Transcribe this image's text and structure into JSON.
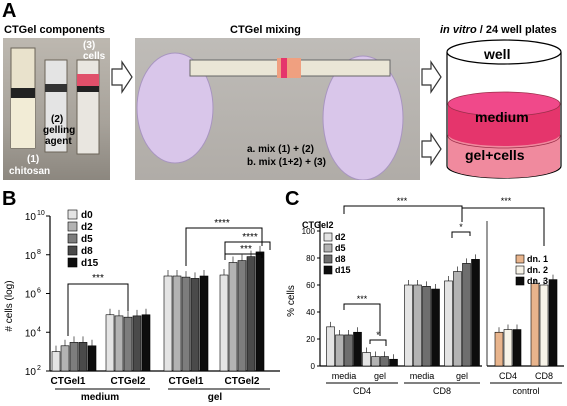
{
  "panel_a": {
    "letter": "A",
    "components_title": "CTGel components",
    "mixing_title": "CTGel mixing",
    "invitro_title_italic": "in vitro",
    "invitro_title_rest": " / 24 well plates",
    "syringe_labels": {
      "chitosan_num": "(1)",
      "chitosan": "chitosan",
      "gelling_num": "(2)",
      "gelling": "gelling",
      "agent": "agent",
      "cells_num": "(3)",
      "cells": "cells"
    },
    "mix_a": "a. mix (1) + (2)",
    "mix_b": "b. mix (1+2) + (3)",
    "well": "well",
    "medium": "medium",
    "gel_cells": "gel+cells",
    "colors": {
      "medium": "#e5356c",
      "gel": "#f08a9e",
      "glove": "#d9c6ea"
    }
  },
  "panel_b": {
    "letter": "B",
    "ylabel": "# cells (log)",
    "y_ticks": [
      "10",
      "10",
      "10",
      "10",
      "10"
    ],
    "y_exps": [
      "2",
      "4",
      "6",
      "8",
      "10"
    ],
    "legend": [
      "d0",
      "d2",
      "d5",
      "d8",
      "d15"
    ],
    "x_ticks": [
      "CTGel1",
      "CTGel2",
      "CTGel1",
      "CTGel2"
    ],
    "groups": [
      "medium",
      "gel"
    ],
    "sig": [
      "***",
      "****",
      "****",
      "***"
    ]
  },
  "panel_c": {
    "letter": "C",
    "legend_title": "CTGel2",
    "ylabel": "% cells",
    "y_ticks": [
      "0",
      "20",
      "40",
      "60",
      "80",
      "100"
    ],
    "legend": [
      "d2",
      "d5",
      "d8",
      "d15"
    ],
    "control_legend": [
      "dn. 1",
      "dn. 2",
      "dn. 3"
    ],
    "x_ticks": [
      "media",
      "gel",
      "media",
      "gel",
      "CD4",
      "CD8"
    ],
    "groups": [
      "CD4",
      "CD8",
      "control"
    ],
    "sig": [
      "***",
      "***",
      "*",
      "*",
      "***"
    ]
  },
  "chart_data": [
    {
      "type": "bar",
      "scale": "log",
      "ylabel": "# cells (log)",
      "ylim": [
        100,
        10000000000
      ],
      "categories": [
        "medium CTGel1",
        "medium CTGel2",
        "gel CTGel1",
        "gel CTGel2"
      ],
      "series": [
        {
          "name": "d0",
          "values": [
            1000,
            80000,
            8000000,
            9000000
          ]
        },
        {
          "name": "d2",
          "values": [
            2000,
            70000,
            8000000,
            40000000
          ]
        },
        {
          "name": "d5",
          "values": [
            3000,
            60000,
            7000000,
            50000000
          ]
        },
        {
          "name": "d8",
          "values": [
            3000,
            70000,
            6000000,
            80000000
          ]
        },
        {
          "name": "d15",
          "values": [
            2000,
            80000,
            8000000,
            140000000
          ]
        }
      ],
      "colors": [
        "#e4e4e4",
        "#b3b3b3",
        "#7d7d7d",
        "#4a4a4a",
        "#0d0d0d"
      ]
    },
    {
      "type": "bar",
      "ylabel": "% cells",
      "ylim": [
        0,
        100
      ],
      "categories": [
        "CD4 media",
        "CD4 gel",
        "CD8 media",
        "CD8 gel"
      ],
      "series": [
        {
          "name": "d2",
          "values": [
            29,
            10,
            60,
            63
          ]
        },
        {
          "name": "d5",
          "values": [
            23,
            7,
            60,
            70
          ]
        },
        {
          "name": "d8",
          "values": [
            23,
            7,
            59,
            76
          ]
        },
        {
          "name": "d15",
          "values": [
            25,
            5,
            57,
            79
          ]
        }
      ],
      "control": {
        "categories": [
          "CD4",
          "CD8"
        ],
        "series": [
          {
            "name": "dn. 1",
            "values": [
              25,
              61
            ]
          },
          {
            "name": "dn. 2",
            "values": [
              27,
              60
            ]
          },
          {
            "name": "dn. 3",
            "values": [
              27,
              64
            ]
          }
        ]
      }
    }
  ]
}
